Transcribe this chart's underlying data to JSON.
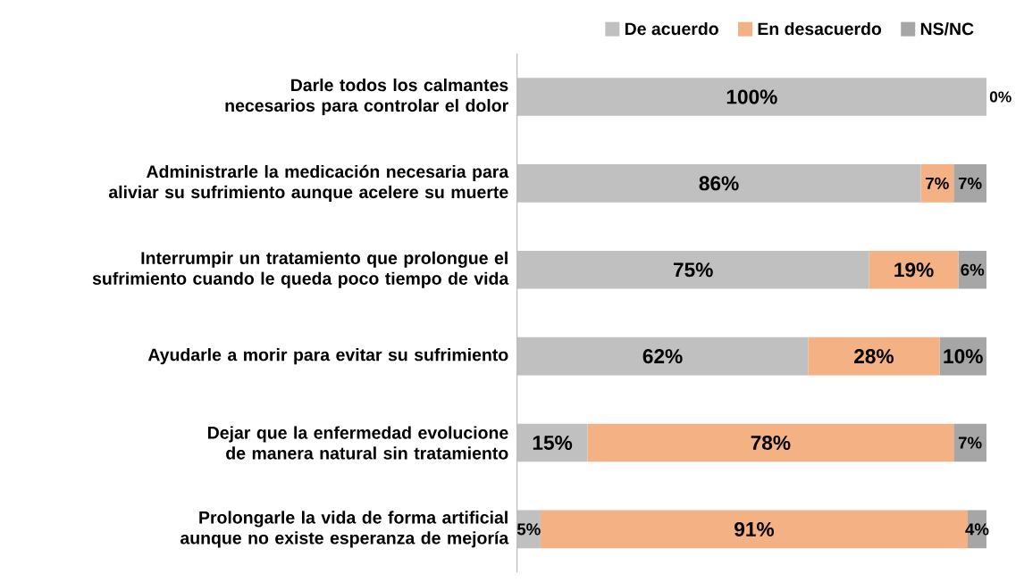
{
  "chart_data": {
    "type": "bar",
    "orientation": "horizontal",
    "stacked": true,
    "data_labels": true,
    "legend": "top right",
    "categories": [
      "Darle todos los calmantes necesarios para controlar el dolor",
      "Administrarle la medicación necesaria para aliviar su sufrimiento aunque acelere su muerte",
      "Interrumpir un tratamiento que prolongue el sufrimiento cuando le queda poco tiempo de vida",
      "Ayudarle a morir para evitar su sufrimiento",
      "Dejar que la enfermedad evolucione de manera natural sin tratamiento",
      "Prolongarle la vida de forma artificial aunque no existe esperanza de mejoría"
    ],
    "series": [
      {
        "name": "De acuerdo",
        "color": "#c0c0c0",
        "values": [
          100,
          86,
          75,
          62,
          15,
          5
        ],
        "value_labels": [
          "100%",
          "86%",
          "75%",
          "62%",
          "15%",
          "5%"
        ]
      },
      {
        "name": "En desacuerdo",
        "color": "#f4b183",
        "values": [
          0,
          7,
          19,
          28,
          78,
          91
        ],
        "value_labels": [
          null,
          "7%",
          "19%",
          "28%",
          "78%",
          "91%"
        ]
      },
      {
        "name": "NS/NC",
        "color": "#a6a6a6",
        "values": [
          0,
          7,
          6,
          10,
          7,
          4
        ],
        "value_labels": [
          "0%",
          "7%",
          "6%",
          "10%",
          "7%",
          "4%"
        ]
      }
    ]
  }
}
